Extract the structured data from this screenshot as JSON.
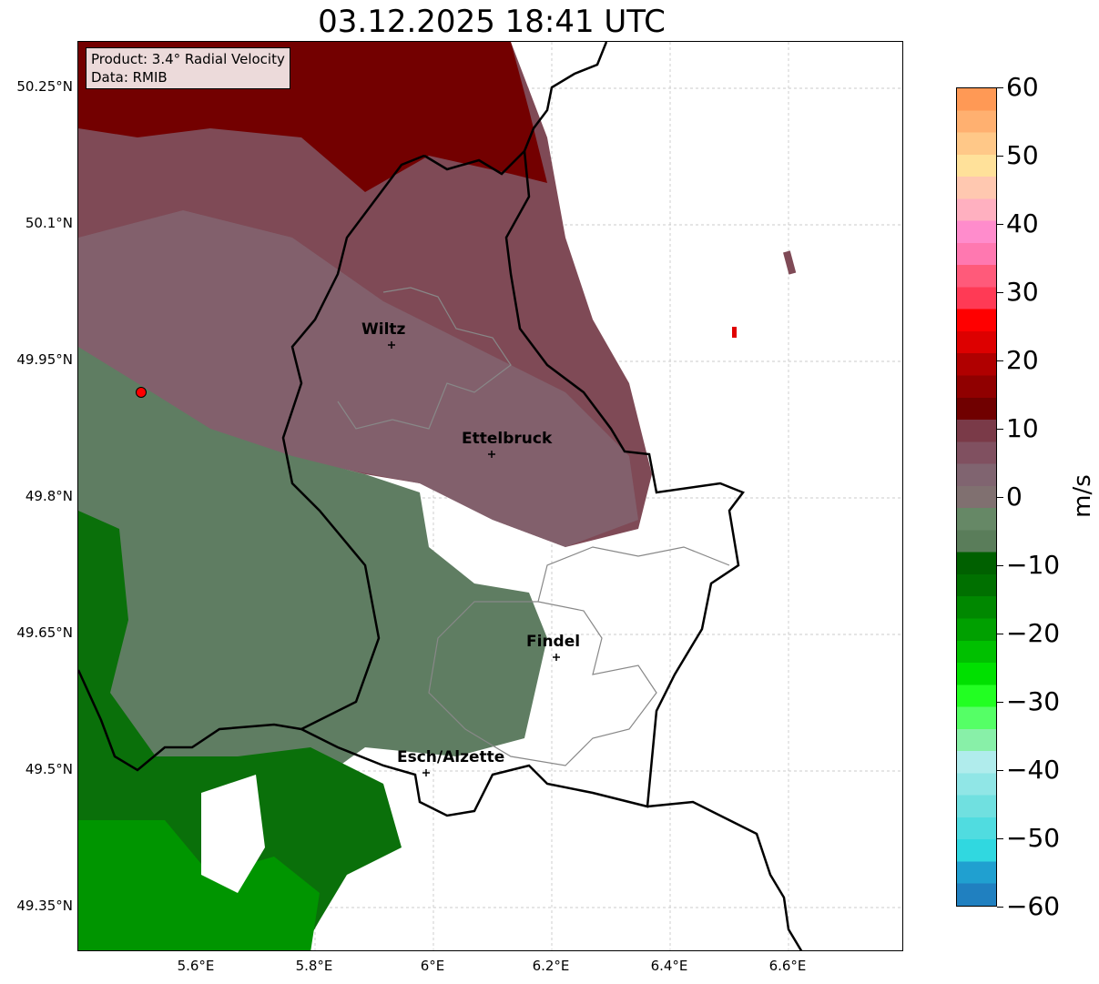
{
  "title": "03.12.2025 18:41 UTC",
  "info": {
    "product": "Product: 3.4° Radial Velocity",
    "data": "Data: RMIB"
  },
  "lat_ticks": [
    "50.25°N",
    "50.1°N",
    "49.95°N",
    "49.8°N",
    "49.65°N",
    "49.5°N",
    "49.35°N"
  ],
  "lon_ticks": [
    "5.6°E",
    "5.8°E",
    "6°E",
    "6.2°E",
    "6.4°E",
    "6.6°E"
  ],
  "cities": [
    {
      "name": "Wiltz"
    },
    {
      "name": "Ettelbruck"
    },
    {
      "name": "Findel"
    },
    {
      "name": "Esch/Alzette"
    }
  ],
  "colorbar": {
    "unit": "m/s",
    "ticks": [
      "60",
      "50",
      "40",
      "30",
      "20",
      "10",
      "0",
      "−10",
      "−20",
      "−30",
      "−40",
      "−50",
      "−60"
    ],
    "stops": [
      "#ff9955",
      "#ffb070",
      "#ffc888",
      "#ffe19a",
      "#ffc8b0",
      "#ffb0c0",
      "#ff8ccc",
      "#ff78b0",
      "#ff5a7a",
      "#ff3a55",
      "#ff0000",
      "#dd0000",
      "#b00000",
      "#900000",
      "#700000",
      "#7a3a48",
      "#805060",
      "#806470",
      "#807070",
      "#668866",
      "#5a7d5a",
      "#006000",
      "#007000",
      "#008800",
      "#00a000",
      "#00c000",
      "#00e000",
      "#22ff22",
      "#55ff66",
      "#88f0a8",
      "#b0ecec",
      "#90e6e6",
      "#70e0e0",
      "#50dce0",
      "#30d8e0",
      "#20a0d0",
      "#2080c0"
    ]
  }
}
